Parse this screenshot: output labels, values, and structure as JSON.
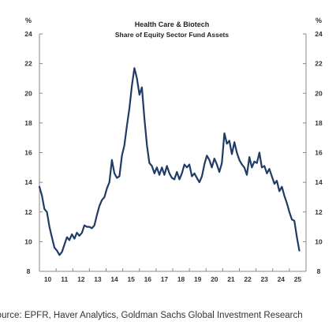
{
  "chart_data": {
    "type": "line",
    "title": "Health Care & Biotech",
    "subtitle": "Share of Equity Sector Fund Assets",
    "ylabel_left": "%",
    "ylabel_right": "%",
    "ylim": [
      8,
      24
    ],
    "yticks": [
      8,
      10,
      12,
      14,
      16,
      18,
      20,
      22,
      24
    ],
    "xlim": [
      2010,
      2026
    ],
    "xticks": [
      "10",
      "11",
      "12",
      "13",
      "14",
      "15",
      "16",
      "17",
      "18",
      "19",
      "20",
      "21",
      "22",
      "23",
      "24",
      "25"
    ],
    "grid": false,
    "line_color": "#1f3b66",
    "series": [
      {
        "x": [
          2010.0,
          2010.15,
          2010.3,
          2010.45,
          2010.6,
          2010.75,
          2010.9,
          2011.05,
          2011.2,
          2011.35,
          2011.5,
          2011.65,
          2011.8,
          2011.95,
          2012.1,
          2012.25,
          2012.4,
          2012.55,
          2012.7,
          2012.85,
          2013.0,
          2013.15,
          2013.3,
          2013.45,
          2013.6,
          2013.75,
          2013.9,
          2014.05,
          2014.2,
          2014.35,
          2014.5,
          2014.65,
          2014.8,
          2014.95,
          2015.1,
          2015.25,
          2015.4,
          2015.55,
          2015.7,
          2015.85,
          2016.0,
          2016.15,
          2016.3,
          2016.45,
          2016.6,
          2016.75,
          2016.9,
          2017.05,
          2017.2,
          2017.35,
          2017.5,
          2017.65,
          2017.8,
          2017.95,
          2018.1,
          2018.25,
          2018.4,
          2018.55,
          2018.7,
          2018.85,
          2019.0,
          2019.15,
          2019.3,
          2019.45,
          2019.6,
          2019.75,
          2019.9,
          2020.05,
          2020.2,
          2020.35,
          2020.5,
          2020.65,
          2020.8,
          2020.95,
          2021.1,
          2021.25,
          2021.4,
          2021.55,
          2021.7,
          2021.85,
          2022.0,
          2022.15,
          2022.3,
          2022.45,
          2022.6,
          2022.75,
          2022.9,
          2023.05,
          2023.2,
          2023.35,
          2023.5,
          2023.65,
          2023.8,
          2023.95,
          2024.1,
          2024.25,
          2024.4,
          2024.55,
          2024.7,
          2024.85,
          2025.0,
          2025.15,
          2025.3,
          2025.45,
          2025.6
        ],
        "y": [
          13.7,
          13.1,
          12.2,
          12.0,
          11.0,
          10.3,
          9.6,
          9.4,
          9.1,
          9.3,
          9.8,
          10.3,
          10.1,
          10.5,
          10.2,
          10.6,
          10.4,
          10.6,
          11.1,
          11.0,
          11.0,
          10.9,
          11.1,
          11.8,
          12.4,
          12.8,
          13.0,
          13.6,
          14.0,
          15.5,
          14.6,
          14.3,
          14.4,
          15.8,
          16.5,
          17.8,
          19.0,
          20.5,
          21.7,
          21.0,
          19.9,
          20.4,
          18.3,
          16.5,
          15.3,
          15.1,
          14.6,
          15.0,
          14.5,
          15.0,
          14.5,
          15.1,
          14.6,
          14.3,
          14.2,
          14.7,
          14.2,
          14.6,
          15.2,
          15.0,
          15.2,
          14.4,
          14.6,
          14.3,
          14.0,
          14.4,
          15.2,
          15.8,
          15.5,
          15.0,
          15.6,
          15.2,
          14.7,
          15.3,
          17.3,
          16.6,
          16.8,
          15.9,
          16.7,
          16.0,
          15.5,
          15.2,
          15.0,
          14.5,
          15.7,
          15.0,
          15.4,
          15.3,
          16.0,
          15.0,
          15.1,
          14.6,
          14.9,
          14.4,
          13.9,
          14.1,
          13.4,
          13.7,
          13.1,
          12.6,
          12.0,
          11.5,
          11.4,
          10.3,
          9.4
        ]
      }
    ]
  },
  "source_note": "Source: EPFR, Haver Analytics, Goldman Sachs Global Investment Research"
}
